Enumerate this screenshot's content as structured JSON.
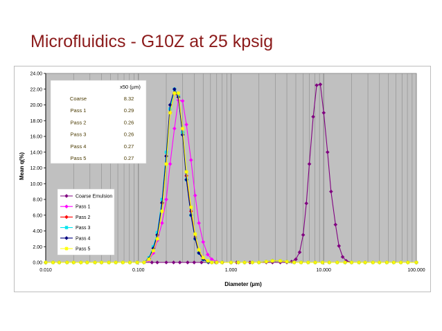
{
  "slide": {
    "title": "Microfluidics - G10Z at 25 kpsig"
  },
  "chart_data": {
    "type": "line",
    "xlabel": "Diameter (µm)",
    "ylabel": "Mean q(%)",
    "xscale": "log",
    "xlim": [
      0.01,
      100
    ],
    "ylim": [
      0,
      24
    ],
    "x_ticks": [
      "0.010",
      "0.100",
      "1.000",
      "10.000",
      "100.000"
    ],
    "y_ticks": [
      "0.00",
      "2.00",
      "4.00",
      "6.00",
      "8.00",
      "10.00",
      "12.00",
      "14.00",
      "16.00",
      "18.00",
      "20.00",
      "22.00",
      "24.00"
    ],
    "grid": "vertical",
    "legend_position": "bottom-left",
    "x50_table": {
      "header": "x50 (µm)",
      "rows": [
        {
          "label": "Coarse",
          "value": "8.32"
        },
        {
          "label": "Pass 1",
          "value": "0.29"
        },
        {
          "label": "Pass 2",
          "value": "0.26"
        },
        {
          "label": "Pass 3",
          "value": "0.26"
        },
        {
          "label": "Pass 4",
          "value": "0.27"
        },
        {
          "label": "Pass 5",
          "value": "0.27"
        }
      ]
    },
    "series": [
      {
        "name": "Coarse Emulsion",
        "color": "#800080",
        "marker": "diamond",
        "x": [
          0.01,
          0.012,
          0.014,
          0.017,
          0.02,
          0.024,
          0.028,
          0.034,
          0.04,
          0.048,
          0.057,
          0.068,
          0.081,
          0.097,
          0.115,
          0.14,
          0.16,
          0.2,
          0.24,
          0.28,
          0.34,
          0.4,
          0.48,
          0.57,
          0.68,
          0.81,
          1.0,
          1.15,
          1.4,
          1.6,
          2.0,
          2.4,
          2.8,
          3.4,
          4.0,
          4.5,
          5.0,
          5.5,
          6.0,
          6.5,
          7.0,
          7.7,
          8.4,
          9.2,
          10.0,
          11.0,
          12.0,
          13.4,
          14.6,
          16.0,
          17.5,
          20.0,
          24.0,
          28.0,
          34.0,
          40.0,
          48.0,
          57.0,
          68.0,
          81.0,
          100.0
        ],
        "y": [
          0,
          0,
          0,
          0,
          0,
          0,
          0,
          0,
          0,
          0,
          0,
          0,
          0,
          0,
          0,
          0,
          0,
          0,
          0,
          0,
          0,
          0,
          0,
          0,
          0,
          0,
          0,
          0,
          0,
          0,
          0,
          0,
          0,
          0,
          0,
          0.1,
          0.4,
          1.3,
          3.5,
          7.5,
          12.5,
          18.5,
          22.5,
          22.6,
          19,
          14,
          9,
          4.8,
          2.1,
          0.7,
          0.2,
          0,
          0,
          0,
          0,
          0,
          0,
          0,
          0,
          0,
          0
        ]
      },
      {
        "name": "Pass 1",
        "color": "#ff00ff",
        "marker": "diamond",
        "x": [
          0.01,
          0.012,
          0.014,
          0.017,
          0.02,
          0.024,
          0.028,
          0.034,
          0.04,
          0.048,
          0.057,
          0.068,
          0.081,
          0.097,
          0.115,
          0.13,
          0.145,
          0.16,
          0.18,
          0.2,
          0.22,
          0.245,
          0.27,
          0.3,
          0.33,
          0.37,
          0.41,
          0.45,
          0.5,
          0.56,
          0.62,
          0.7,
          0.8,
          1.0,
          1.2,
          1.4,
          1.7,
          2.0,
          2.4,
          2.8,
          3.4,
          4.0,
          4.8,
          5.7,
          6.8,
          8.1,
          9.7,
          11.5,
          14.0,
          17.0,
          20.0,
          24.0,
          28.0,
          34.0,
          40.0,
          48.0,
          57.0,
          68.0,
          81.0,
          100.0
        ],
        "y": [
          0,
          0,
          0,
          0,
          0,
          0,
          0,
          0,
          0,
          0,
          0,
          0,
          0,
          0,
          0,
          0.3,
          1.2,
          2.8,
          5.0,
          8.0,
          12.5,
          17.0,
          20.6,
          20.5,
          17.5,
          13.0,
          8.5,
          5.0,
          2.6,
          1.0,
          0.4,
          0.1,
          0,
          0,
          0,
          0,
          0,
          0,
          0.1,
          0.2,
          0.2,
          0.1,
          0,
          0,
          0,
          0,
          0,
          0,
          0,
          0,
          0,
          0,
          0,
          0,
          0,
          0,
          0,
          0,
          0,
          0
        ]
      },
      {
        "name": "Pass 2",
        "color": "#ff0000",
        "marker": "diamond",
        "x": [
          0.01,
          0.012,
          0.014,
          0.017,
          0.02,
          0.024,
          0.028,
          0.034,
          0.04,
          0.048,
          0.057,
          0.068,
          0.081,
          0.097,
          0.115,
          0.13,
          0.145,
          0.16,
          0.18,
          0.2,
          0.22,
          0.245,
          0.27,
          0.3,
          0.33,
          0.37,
          0.41,
          0.45,
          0.5,
          0.56,
          0.62,
          0.7,
          0.8,
          1.0,
          1.2,
          1.4,
          1.7,
          2.0,
          2.4,
          2.8,
          3.4,
          4.0,
          4.8,
          5.7,
          6.8,
          8.1,
          9.7,
          11.5,
          14.0,
          17.0,
          20.0,
          24.0,
          28.0,
          34.0,
          40.0,
          48.0,
          57.0,
          68.0,
          81.0,
          100.0
        ],
        "y": [
          0,
          0,
          0,
          0,
          0,
          0,
          0,
          0,
          0,
          0,
          0,
          0,
          0,
          0,
          0,
          0.5,
          1.8,
          3.5,
          7.5,
          13.5,
          19.0,
          21.5,
          21.0,
          16.5,
          11.0,
          6.5,
          3.2,
          1.3,
          0.5,
          0.1,
          0,
          0,
          0,
          0,
          0,
          0,
          0,
          0,
          0.1,
          0.2,
          0.2,
          0.1,
          0,
          0,
          0,
          0,
          0,
          0,
          0,
          0,
          0,
          0,
          0,
          0,
          0,
          0,
          0,
          0,
          0,
          0
        ]
      },
      {
        "name": "Pass 3",
        "color": "#00e5ee",
        "marker": "star",
        "x": [
          0.01,
          0.012,
          0.014,
          0.017,
          0.02,
          0.024,
          0.028,
          0.034,
          0.04,
          0.048,
          0.057,
          0.068,
          0.081,
          0.097,
          0.115,
          0.13,
          0.145,
          0.16,
          0.18,
          0.2,
          0.22,
          0.245,
          0.27,
          0.3,
          0.33,
          0.37,
          0.41,
          0.45,
          0.5,
          0.56,
          0.62,
          0.7,
          0.8,
          1.0,
          1.2,
          1.4,
          1.7,
          2.0,
          2.4,
          2.8,
          3.4,
          4.0,
          4.8,
          5.7,
          6.8,
          8.1,
          9.7,
          11.5,
          14.0,
          17.0,
          20.0,
          24.0,
          28.0,
          34.0,
          40.0,
          48.0,
          57.0,
          68.0,
          81.0,
          100.0
        ],
        "y": [
          0,
          0,
          0,
          0,
          0,
          0,
          0,
          0,
          0,
          0,
          0,
          0,
          0,
          0,
          0,
          0.6,
          2.0,
          3.8,
          8.0,
          14.0,
          19.5,
          22.0,
          21.2,
          16.5,
          10.5,
          6.0,
          3.0,
          1.2,
          0.4,
          0.1,
          0,
          0,
          0,
          0,
          0,
          0,
          0,
          0,
          0.1,
          0.2,
          0.2,
          0.1,
          0,
          0,
          0,
          0,
          0,
          0,
          0,
          0,
          0,
          0,
          0,
          0,
          0,
          0,
          0,
          0,
          0,
          0
        ]
      },
      {
        "name": "Pass 4",
        "color": "#000080",
        "marker": "diamond",
        "x": [
          0.01,
          0.012,
          0.014,
          0.017,
          0.02,
          0.024,
          0.028,
          0.034,
          0.04,
          0.048,
          0.057,
          0.068,
          0.081,
          0.097,
          0.115,
          0.13,
          0.145,
          0.16,
          0.18,
          0.2,
          0.22,
          0.245,
          0.27,
          0.3,
          0.33,
          0.37,
          0.41,
          0.45,
          0.5,
          0.56,
          0.62,
          0.7,
          0.8,
          1.0,
          1.2,
          1.4,
          1.7,
          2.0,
          2.4,
          2.8,
          3.4,
          4.0,
          4.8,
          5.7,
          6.8,
          8.1,
          9.7,
          11.5,
          14.0,
          17.0,
          20.0,
          24.0,
          28.0,
          34.0,
          40.0,
          48.0,
          57.0,
          68.0,
          81.0,
          100.0
        ],
        "y": [
          0,
          0,
          0,
          0,
          0,
          0,
          0,
          0,
          0,
          0,
          0,
          0,
          0,
          0,
          0,
          0.5,
          1.8,
          3.5,
          7.6,
          13.5,
          20.0,
          22.0,
          21.0,
          16.2,
          10.5,
          6.0,
          3.0,
          1.2,
          0.4,
          0.1,
          0,
          0,
          0,
          0,
          0,
          0,
          0,
          0,
          0.1,
          0.2,
          0.2,
          0.1,
          0,
          0,
          0,
          0,
          0,
          0,
          0,
          0,
          0,
          0,
          0,
          0,
          0,
          0,
          0,
          0,
          0,
          0
        ]
      },
      {
        "name": "Pass 5",
        "color": "#ffff00",
        "marker": "star",
        "x": [
          0.01,
          0.012,
          0.014,
          0.017,
          0.02,
          0.024,
          0.028,
          0.034,
          0.04,
          0.048,
          0.057,
          0.068,
          0.081,
          0.097,
          0.115,
          0.13,
          0.145,
          0.16,
          0.18,
          0.2,
          0.22,
          0.245,
          0.27,
          0.3,
          0.33,
          0.37,
          0.41,
          0.45,
          0.5,
          0.56,
          0.62,
          0.7,
          0.8,
          1.0,
          1.2,
          1.4,
          1.7,
          2.0,
          2.4,
          2.8,
          3.4,
          4.0,
          4.8,
          5.7,
          6.8,
          8.1,
          9.7,
          11.5,
          14.0,
          17.0,
          20.0,
          24.0,
          28.0,
          34.0,
          40.0,
          48.0,
          57.0,
          68.0,
          81.0,
          100.0
        ],
        "y": [
          0,
          0,
          0,
          0,
          0,
          0,
          0,
          0,
          0,
          0,
          0,
          0,
          0,
          0,
          0,
          0.4,
          1.5,
          3.0,
          6.5,
          12.5,
          19.0,
          21.5,
          21.5,
          17.0,
          11.5,
          7.0,
          3.6,
          1.6,
          0.6,
          0.2,
          0,
          0,
          0,
          0,
          0,
          0,
          0,
          0,
          0.1,
          0.2,
          0.2,
          0.1,
          0,
          0,
          0,
          0,
          0,
          0,
          0,
          0,
          0,
          0,
          0,
          0,
          0,
          0,
          0,
          0,
          0,
          0
        ]
      }
    ]
  }
}
